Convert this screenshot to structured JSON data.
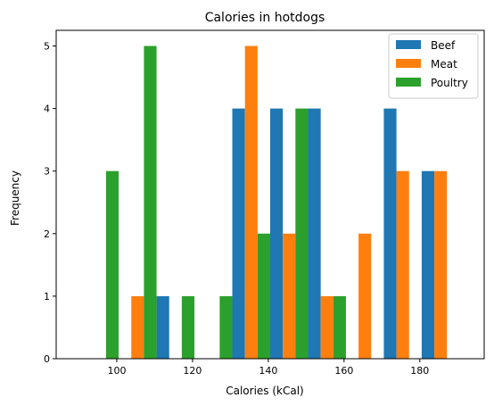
{
  "chart_data": {
    "type": "bar",
    "title": "Calories in hotdogs",
    "xlabel": "Calories (kCal)",
    "ylabel": "Frequency",
    "xlim": [
      84,
      197
    ],
    "ylim": [
      0,
      5.25
    ],
    "xticks": [
      100,
      120,
      140,
      160,
      180
    ],
    "yticks": [
      0,
      1,
      2,
      3,
      4,
      5
    ],
    "x": [
      95.5,
      105.5,
      115.5,
      125.5,
      135.5,
      145.5,
      155.5,
      165.5,
      175.5,
      185.5
    ],
    "bin_width": 10,
    "legend_position": "top-right",
    "grid": false,
    "series": [
      {
        "name": "Beef",
        "color": "#1f77b4",
        "values": [
          0,
          0,
          1,
          0,
          4,
          4,
          4,
          0,
          4,
          3
        ]
      },
      {
        "name": "Meat",
        "color": "#ff7f0e",
        "values": [
          0,
          1,
          0,
          0,
          5,
          2,
          1,
          2,
          3,
          3
        ]
      },
      {
        "name": "Poultry",
        "color": "#2ca02c",
        "values": [
          3,
          5,
          1,
          1,
          2,
          4,
          1,
          0,
          0,
          0
        ]
      }
    ]
  }
}
